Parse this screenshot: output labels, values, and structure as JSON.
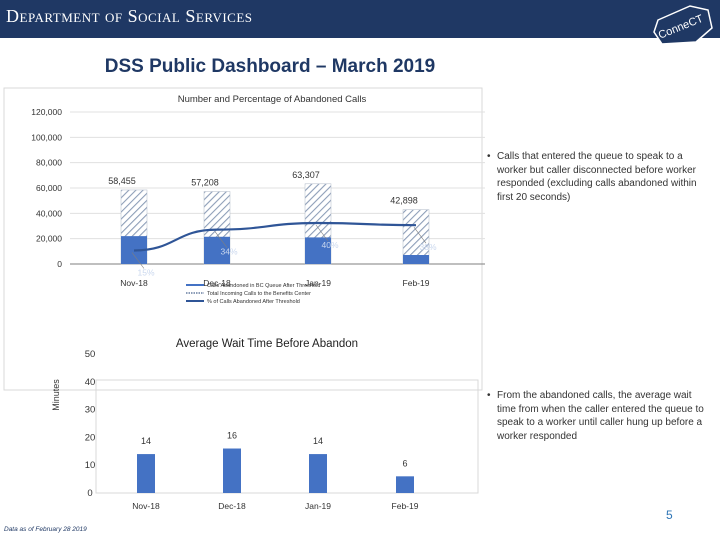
{
  "header": {
    "department": "Department of Social Services",
    "logo_text": "ConneCT"
  },
  "page_title": "DSS Public Dashboard – March  2019",
  "chart_data": [
    {
      "type": "bar",
      "title": "Number and Percentage of Abandoned Calls",
      "categories": [
        "Nov-18",
        "Dec-18",
        "Jan-19",
        "Feb-19"
      ],
      "y_ticks": [
        "120,000",
        "100,000",
        "80,000",
        "60,000",
        "40,000",
        "20,000",
        "0"
      ],
      "ylim": [
        0,
        120000
      ],
      "series": [
        {
          "name": "Calls Abandoned in BC Queue After Threshold",
          "values": [
            22000,
            21500,
            21000,
            7100
          ]
        },
        {
          "name": "Total Incoming Calls to the Benefits Center",
          "values": [
            58455,
            57208,
            63307,
            42898
          ],
          "labels": [
            "58,455",
            "57,208",
            "63,307",
            "42,898"
          ]
        },
        {
          "name": "% of Calls Abandoned After Threshold",
          "values": [
            15,
            34,
            40,
            38
          ],
          "labels": [
            "15%",
            "34%",
            "40%",
            "38%"
          ]
        }
      ],
      "legend_position": "bottom"
    },
    {
      "type": "bar",
      "title": "Average Wait Time Before Abandon",
      "ylabel": "Minutes",
      "categories": [
        "Nov-18",
        "Dec-18",
        "Jan-19",
        "Feb-19"
      ],
      "y_ticks": [
        "50",
        "40",
        "30",
        "20",
        "10",
        "0"
      ],
      "ylim": [
        0,
        50
      ],
      "values": [
        14,
        16,
        14,
        6
      ],
      "labels": [
        "14",
        "16",
        "14",
        "6"
      ]
    }
  ],
  "notes": {
    "chart1": "Calls that entered the queue to speak to a worker but caller disconnected before worker responded (excluding calls abandoned within first 20 seconds)",
    "chart2": "From the abandoned calls, the average wait time from when the caller entered the queue to speak to a worker until caller hung up before a worker responded",
    "bullet": "•"
  },
  "footer": {
    "data_note": "Data as of February 28 2019",
    "page_number": "5"
  },
  "colors": {
    "header": "#1f3864",
    "bar": "#4472c4",
    "line": "#2f5597",
    "hatch": "#8d9eb8"
  }
}
